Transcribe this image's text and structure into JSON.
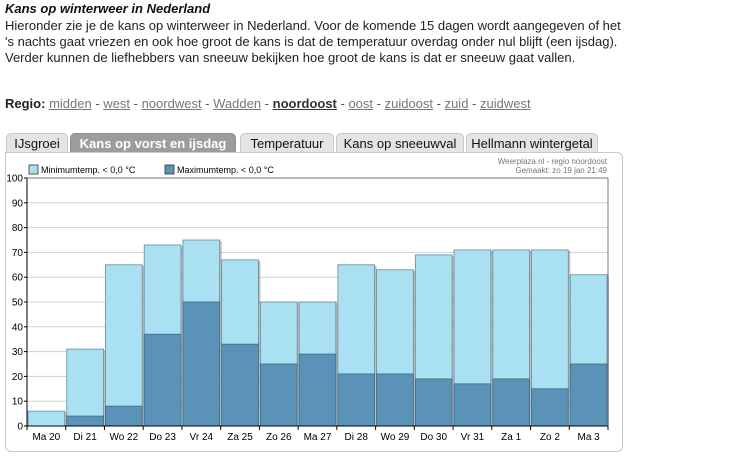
{
  "page": {
    "title": "Kans op winterweer in Nederland",
    "intro": "Hieronder zie je de kans op winterweer in Nederland. Voor de komende 15 dagen wordt aangegeven of het 's nachts gaat vriezen en ook hoe groot de kans is dat de temperatuur overdag onder nul blijft (een ijsdag). Verder kunnen de liefhebbers van sneeuw bekijken hoe groot de kans is dat er sneeuw gaat vallen."
  },
  "regio": {
    "label": "Regio:",
    "items": [
      {
        "label": "midden",
        "active": false
      },
      {
        "label": "west",
        "active": false
      },
      {
        "label": "noordwest",
        "active": false
      },
      {
        "label": "Wadden",
        "active": false
      },
      {
        "label": "noordoost",
        "active": true
      },
      {
        "label": "oost",
        "active": false
      },
      {
        "label": "zuidoost",
        "active": false
      },
      {
        "label": "zuid",
        "active": false
      },
      {
        "label": "zuidwest",
        "active": false
      }
    ],
    "separator": " - "
  },
  "tabs": [
    {
      "label": "IJsgroei",
      "active": false
    },
    {
      "label": "Kans op vorst en ijsdag",
      "active": true
    },
    {
      "label": "Temperatuur",
      "active": false
    },
    {
      "label": "Kans op sneeuwval",
      "active": false
    },
    {
      "label": "Hellmann wintergetal",
      "active": false
    }
  ],
  "chart_credit": {
    "line1": "Weerplaza.nl - regio noordoost",
    "line2": "Gemaakt: zo 19 jan 21:49"
  },
  "colors": {
    "min_series": "#a9e1f2",
    "max_series": "#5b93b8",
    "tab_active": "#9c9c9c"
  },
  "chart_data": {
    "type": "bar",
    "categories": [
      "Ma 20",
      "Di 21",
      "Wo 22",
      "Do 23",
      "Vr 24",
      "Za 25",
      "Zo 26",
      "Ma 27",
      "Di 28",
      "Wo 29",
      "Do 30",
      "Vr 31",
      "Za 1",
      "Zo 2",
      "Ma 3"
    ],
    "series": [
      {
        "name": "Minimumtemp. < 0,0 °C",
        "values": [
          6,
          31,
          65,
          73,
          75,
          67,
          50,
          50,
          65,
          63,
          69,
          71,
          71,
          71,
          61
        ]
      },
      {
        "name": "Maximumtemp. < 0,0 °C",
        "values": [
          0,
          4,
          8,
          37,
          50,
          33,
          25,
          29,
          21,
          21,
          19,
          17,
          19,
          15,
          25
        ]
      }
    ],
    "ylim": [
      0,
      100
    ],
    "yticks": [
      0,
      10,
      20,
      30,
      40,
      50,
      60,
      70,
      80,
      90,
      100
    ],
    "grid": true,
    "legend_position": "top-left"
  }
}
